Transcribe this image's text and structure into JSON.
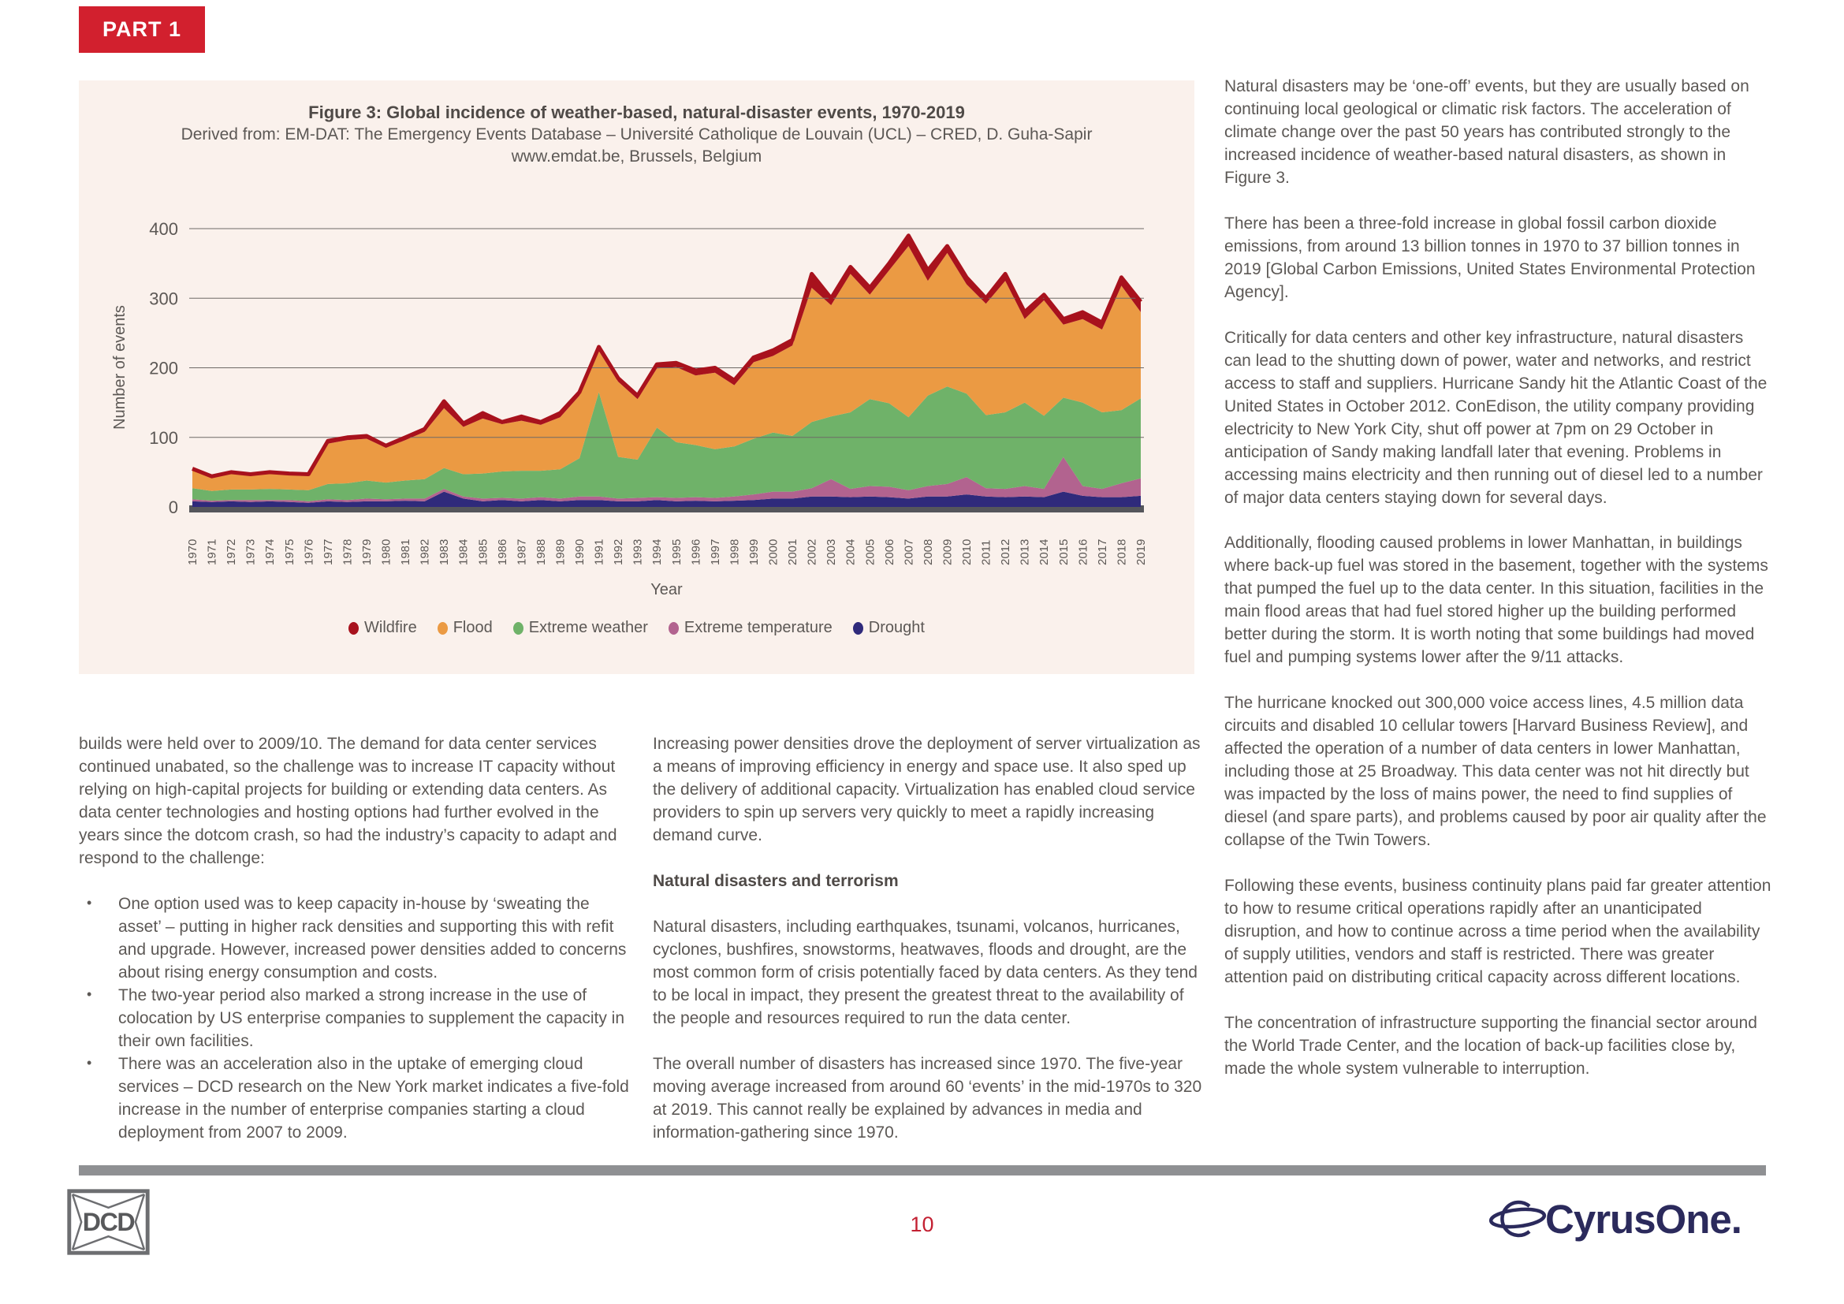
{
  "page": {
    "part_label": "PART 1",
    "page_number": "10"
  },
  "colors": {
    "accent_red": "#d2202e",
    "page_number_red": "#c32032",
    "panel_background": "#faf1ec",
    "footer_bar_gray": "#8f9093",
    "dcd_gray": "#6d6e71",
    "cyrusone_navy": "#2b2a5c",
    "body_text": "#5c5855"
  },
  "figure": {
    "title": "Figure 3: Global incidence of weather-based, natural-disaster events, 1970-2019",
    "source_line1": "Derived from: EM-DAT: The Emergency Events Database – Université Catholique de Louvain (UCL) – CRED, D. Guha-Sapir",
    "source_line2": "www.emdat.be, Brussels, Belgium"
  },
  "chart_data": {
    "type": "area",
    "stacked": true,
    "title": "Figure 3: Global incidence of weather-based, natural-disaster events, 1970-2019",
    "xlabel": "Year",
    "ylabel": "Number of events",
    "ylim": [
      0,
      400
    ],
    "yticks": [
      0,
      100,
      200,
      300,
      400
    ],
    "grid": "horizontal",
    "legend_position": "bottom",
    "x": [
      1970,
      1971,
      1972,
      1973,
      1974,
      1975,
      1976,
      1977,
      1978,
      1979,
      1980,
      1981,
      1982,
      1983,
      1984,
      1985,
      1986,
      1987,
      1988,
      1989,
      1990,
      1991,
      1992,
      1993,
      1994,
      1995,
      1996,
      1997,
      1998,
      1999,
      2000,
      2001,
      2002,
      2003,
      2004,
      2005,
      2006,
      2007,
      2008,
      2009,
      2010,
      2011,
      2012,
      2013,
      2014,
      2015,
      2016,
      2017,
      2018,
      2019
    ],
    "series": [
      {
        "name": "Drought",
        "color": "#2f2a7b",
        "values": [
          8,
          7,
          8,
          7,
          8,
          7,
          6,
          8,
          7,
          8,
          8,
          9,
          8,
          22,
          12,
          8,
          10,
          8,
          10,
          8,
          10,
          10,
          8,
          8,
          10,
          8,
          9,
          8,
          9,
          10,
          12,
          12,
          15,
          15,
          14,
          15,
          14,
          12,
          15,
          15,
          18,
          15,
          14,
          15,
          14,
          22,
          16,
          14,
          14,
          16
        ]
      },
      {
        "name": "Extreme temperature",
        "color": "#b2638f",
        "values": [
          3,
          2,
          2,
          3,
          2,
          3,
          2,
          3,
          3,
          4,
          3,
          3,
          4,
          4,
          3,
          4,
          3,
          4,
          4,
          4,
          5,
          5,
          4,
          5,
          4,
          5,
          5,
          5,
          6,
          8,
          10,
          10,
          12,
          25,
          12,
          15,
          15,
          12,
          15,
          18,
          25,
          12,
          12,
          15,
          12,
          50,
          14,
          12,
          20,
          25
        ]
      },
      {
        "name": "Extreme weather",
        "color": "#6fb269",
        "values": [
          16,
          14,
          15,
          15,
          16,
          15,
          16,
          22,
          24,
          26,
          24,
          26,
          28,
          30,
          32,
          36,
          38,
          40,
          38,
          42,
          55,
          150,
          60,
          55,
          100,
          80,
          75,
          70,
          72,
          80,
          85,
          80,
          95,
          90,
          110,
          125,
          120,
          105,
          130,
          140,
          120,
          105,
          110,
          120,
          105,
          85,
          120,
          110,
          105,
          115
        ]
      },
      {
        "name": "Flood",
        "color": "#eb9a43",
        "values": [
          26,
          19,
          23,
          20,
          22,
          21,
          21,
          58,
          62,
          60,
          50,
          58,
          68,
          86,
          68,
          79,
          68,
          72,
          66,
          75,
          90,
          59,
          108,
          87,
          85,
          108,
          100,
          110,
          88,
          110,
          110,
          130,
          193,
          160,
          199,
          150,
          191,
          246,
          165,
          192,
          157,
          160,
          189,
          120,
          166,
          105,
          120,
          119,
          179,
          124
        ]
      },
      {
        "name": "Wildfire",
        "color": "#a8121d",
        "values": [
          2,
          2,
          2,
          2,
          2,
          2,
          2,
          4,
          4,
          4,
          3,
          4,
          4,
          10,
          5,
          8,
          3,
          6,
          4,
          6,
          5,
          6,
          5,
          5,
          6,
          6,
          7,
          7,
          7,
          7,
          8,
          8,
          20,
          10,
          10,
          10,
          10,
          15,
          15,
          10,
          10,
          8,
          10,
          10,
          8,
          8,
          10,
          10,
          12,
          15
        ]
      }
    ],
    "legend": [
      {
        "label": "Wildfire",
        "color": "#a8121d"
      },
      {
        "label": "Flood",
        "color": "#eb9a43"
      },
      {
        "label": "Extreme weather",
        "color": "#6fb269"
      },
      {
        "label": "Extreme temperature",
        "color": "#b2638f"
      },
      {
        "label": "Drought",
        "color": "#2f2a7b"
      }
    ]
  },
  "columns": {
    "left": {
      "paragraph": "builds were held over to 2009/10. The demand for data center services continued unabated, so the challenge was to increase IT capacity without relying on high-capital projects for building or extending data centers. As data center technologies and hosting options had further evolved in the years since the dotcom crash, so had the industry’s capacity to adapt and respond to the challenge:",
      "bullets": [
        "One option used was to keep capacity in-house by ‘sweating the asset’ – putting in higher rack densities and supporting this with refit and upgrade. However, increased power densities added to concerns about rising energy consumption and costs.",
        "The two-year period also marked a strong increase in the use of colocation by US enterprise companies to supplement the capacity in their own facilities.",
        "There was an acceleration also in the uptake of emerging cloud services – DCD research on the New York market indicates a five-fold increase in the number of enterprise companies starting a cloud deployment from 2007 to 2009."
      ]
    },
    "middle": {
      "paragraph1": "Increasing power densities drove the deployment of server virtualization as a means of improving efficiency in energy and space use. It also sped up the delivery of additional capacity. Virtualization has enabled cloud service providers to spin up servers very quickly to meet a rapidly increasing demand curve.",
      "heading": "Natural disasters and terrorism",
      "paragraph2": "Natural disasters, including earthquakes, tsunami, volcanos, hurricanes, cyclones, bushfires, snowstorms, heatwaves, floods and drought, are the most common form of crisis potentially faced by data centers. As they tend to be local in impact, they present the greatest threat to the availability of the people and resources required to run the data center.",
      "paragraph3": "The overall number of disasters has increased since 1970. The five-year moving average increased from around 60 ‘events’ in the mid-1970s to 320 at 2019. This cannot really be explained by advances in media and information-gathering since 1970."
    },
    "right": {
      "paragraphs": [
        "Natural disasters may be ‘one-off’ events, but they are usually based on continuing local geological or climatic risk factors. The acceleration of climate change over the past 50 years has contributed strongly to the increased incidence of weather-based natural disasters, as shown in Figure 3.",
        "There has been a three-fold increase in global fossil carbon dioxide emissions, from around 13 billion tonnes in 1970 to 37 billion tonnes in 2019 [Global Carbon Emissions, United States Environmental Protection Agency].",
        "Critically for data centers and other key infrastructure, natural disasters can lead to the shutting down of power, water and networks, and restrict access to staff and suppliers. Hurricane Sandy hit the Atlantic Coast of the United States in October 2012. ConEdison, the utility company providing electricity to New York City, shut off power at 7pm on 29 October in anticipation of Sandy making landfall later that evening. Problems in accessing mains electricity and then running out of diesel led to a number of major data centers staying down for several days.",
        "Additionally, flooding caused problems in lower Manhattan, in buildings where back-up fuel was stored in the basement, together with the systems that pumped the fuel up to the data center. In this situation, facilities in the main flood areas that had fuel stored higher up the building performed better during the storm. It is worth noting that some buildings had moved fuel and pumping systems lower after the 9/11 attacks.",
        "The hurricane knocked out 300,000 voice access lines, 4.5 million data circuits and disabled 10 cellular towers [Harvard Business Review], and affected the operation of a number of data centers in lower Manhattan, including those at 25 Broadway. This data center was not hit directly but was impacted by the loss of mains power, the need to find supplies of diesel (and spare parts), and problems caused by poor air quality after the collapse of the Twin Towers.",
        "Following these events, business continuity plans paid far greater attention to how to resume critical operations rapidly after an unanticipated disruption, and how to continue across a time period when the availability of supply utilities, vendors and staff is restricted. There was greater attention paid on distributing critical capacity across different locations.",
        "The concentration of infrastructure supporting the financial sector around the World Trade Center, and the location of back-up facilities close by, made the whole system vulnerable to interruption."
      ]
    }
  },
  "footer": {
    "dcd_logo_text": "DCD",
    "cyrusone_text": "CyrusOne."
  }
}
